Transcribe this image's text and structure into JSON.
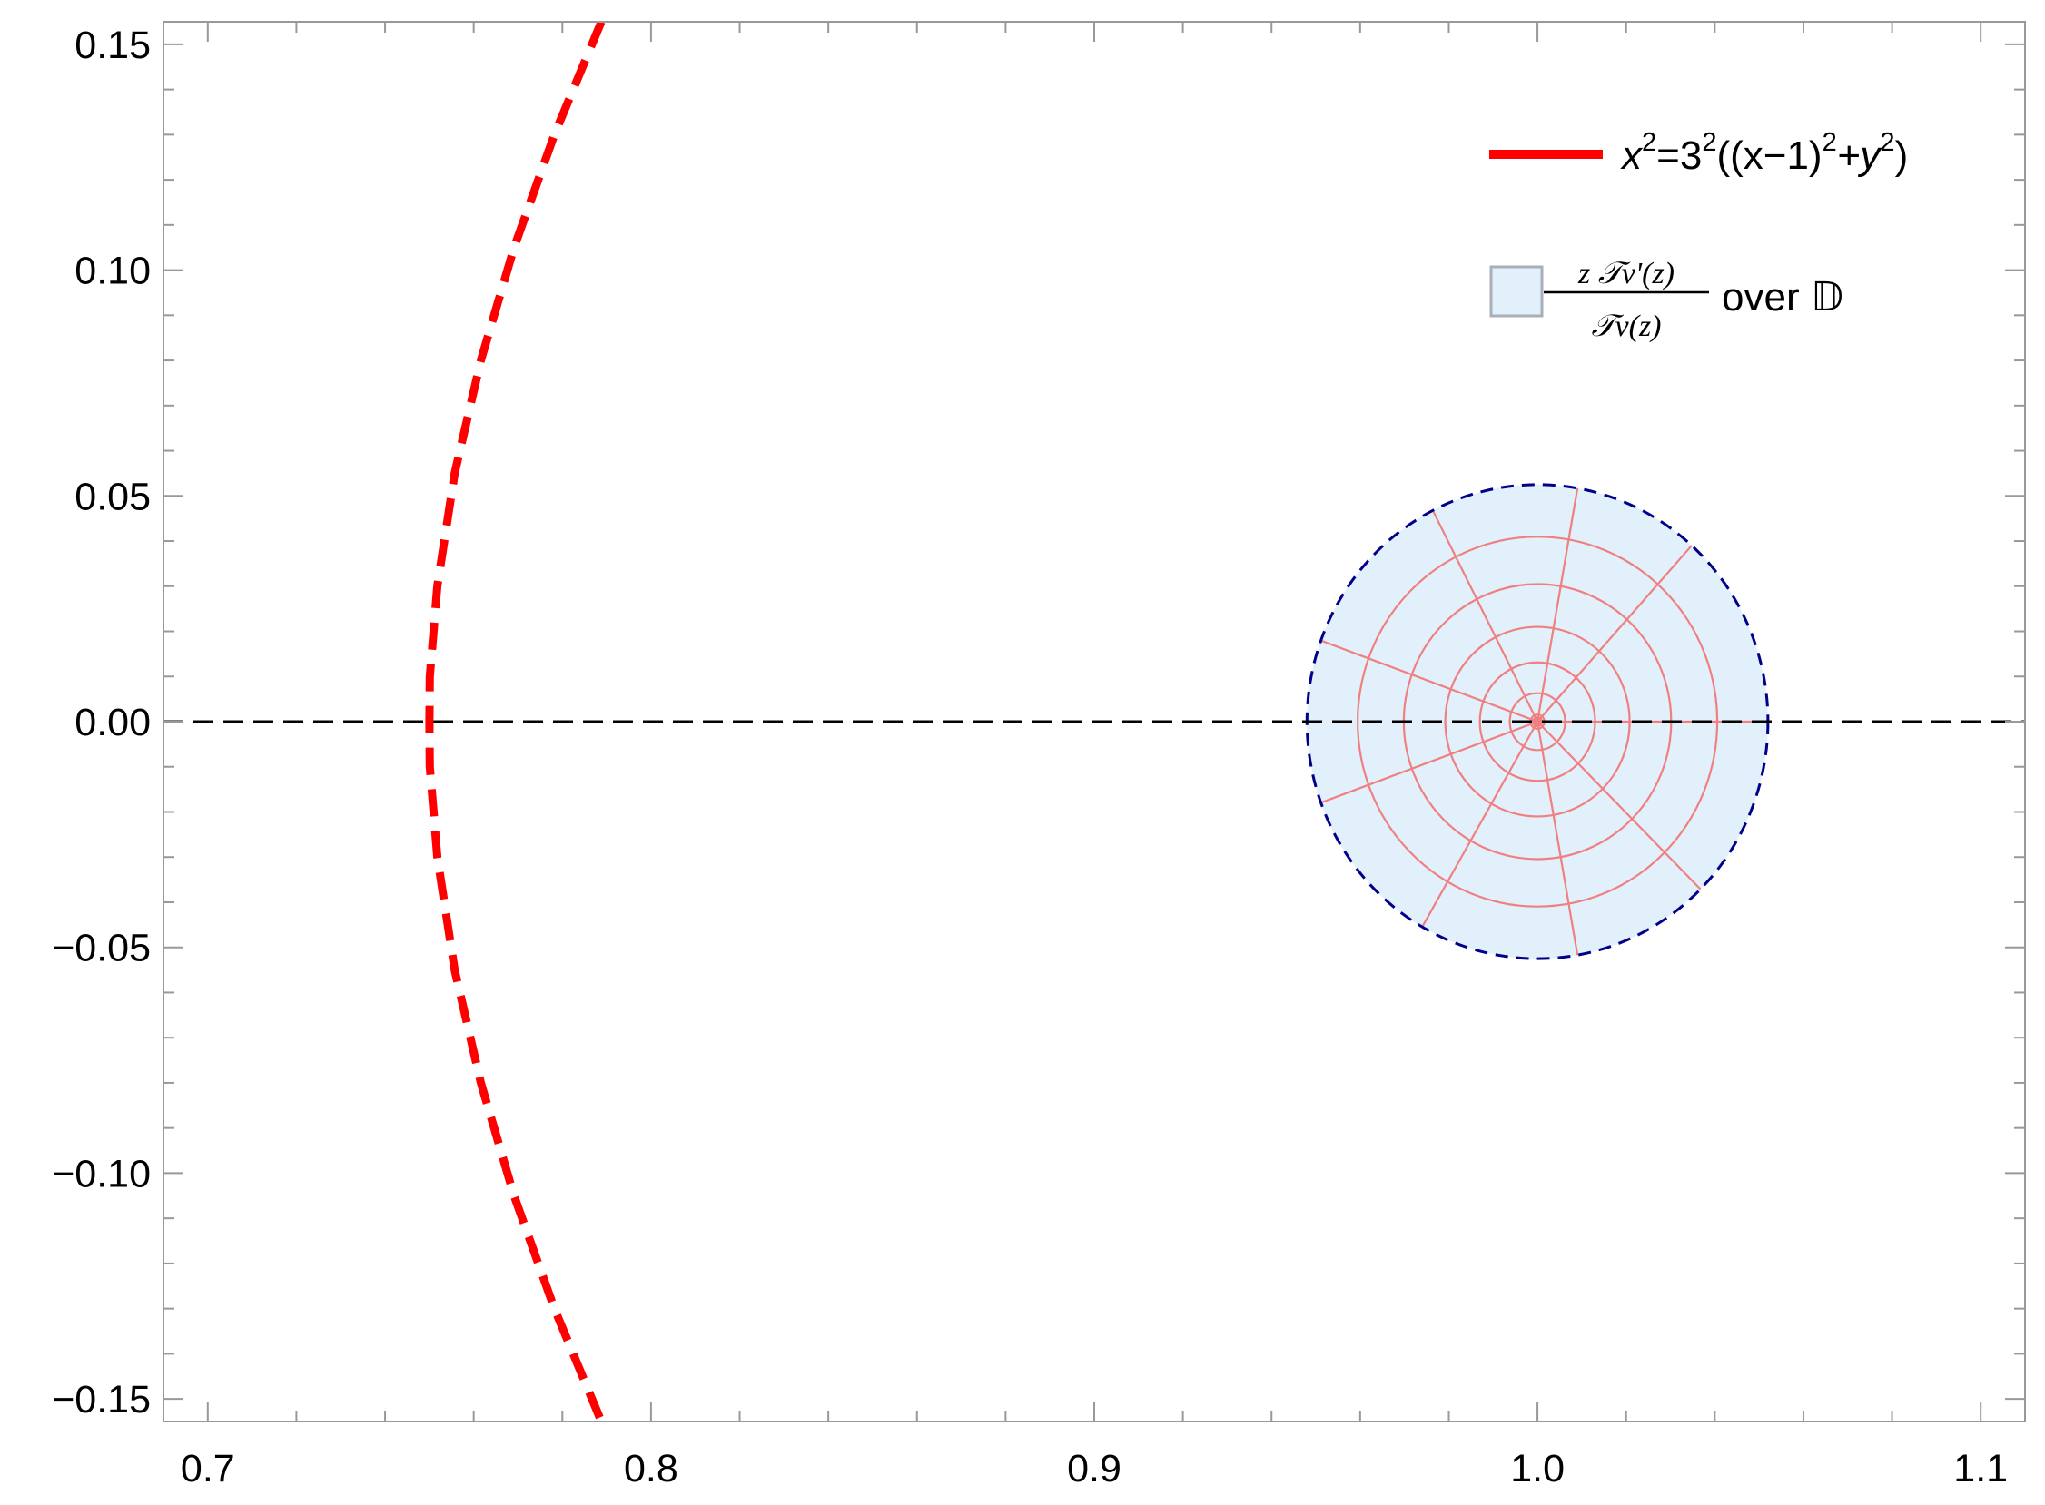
{
  "chart_data": {
    "type": "line",
    "xlim": [
      0.69,
      1.11
    ],
    "ylim": [
      -0.155,
      0.155
    ],
    "x_ticks": [
      {
        "value": 0.7,
        "label": "0.7"
      },
      {
        "value": 0.8,
        "label": "0.8"
      },
      {
        "value": 0.9,
        "label": "0.9"
      },
      {
        "value": 1.0,
        "label": "1.0"
      },
      {
        "value": 1.1,
        "label": "1.1"
      }
    ],
    "y_ticks": [
      {
        "value": 0.15,
        "label": "0.15"
      },
      {
        "value": 0.1,
        "label": "0.10"
      },
      {
        "value": 0.05,
        "label": "0.05"
      },
      {
        "value": 0.0,
        "label": "0.00"
      },
      {
        "value": -0.05,
        "label": "−0.05"
      },
      {
        "value": -0.1,
        "label": "−0.10"
      },
      {
        "value": -0.15,
        "label": "−0.15"
      }
    ],
    "x_minor_step": 0.02,
    "y_minor_step": 0.01,
    "grid": false,
    "legend_position": "top-right",
    "reference_line": {
      "y": 0.0,
      "style": "dashed",
      "color": "#000000"
    },
    "series": [
      {
        "id": "boundary-curve",
        "type": "curve",
        "style": "dashed",
        "color": "#ff0000",
        "points": [
          [
            0.7888,
            0.155
          ],
          [
            0.7782,
            0.13
          ],
          [
            0.7691,
            0.105
          ],
          [
            0.7616,
            0.08
          ],
          [
            0.7557,
            0.055
          ],
          [
            0.7518,
            0.03
          ],
          [
            0.7501,
            0.01
          ],
          [
            0.75,
            0.0
          ],
          [
            0.7501,
            -0.01
          ],
          [
            0.7518,
            -0.03
          ],
          [
            0.7557,
            -0.055
          ],
          [
            0.7616,
            -0.08
          ],
          [
            0.7691,
            -0.105
          ],
          [
            0.7782,
            -0.13
          ],
          [
            0.7888,
            -0.155
          ]
        ]
      },
      {
        "id": "image-region",
        "type": "disk",
        "center": [
          1.0,
          0.0
        ],
        "radius_x": 0.052,
        "radius_y": 0.0525,
        "fill": "#e1f0fb",
        "boundary_color": "#00008b",
        "mesh_color": "#f08080",
        "mesh_ring_fractions": [
          0.03,
          0.12,
          0.25,
          0.4,
          0.58,
          0.78
        ],
        "mesh_spoke_angles_deg": [
          80,
          48,
          0,
          -45,
          -80,
          -120,
          -160,
          160,
          117
        ]
      }
    ],
    "legend": {
      "line_entry": {
        "color": "#ff0000",
        "pre": "x",
        "sup1": "2",
        "mid": "=3",
        "sup2": "2",
        "mid2": "((x−1)",
        "sup3": "2",
        "mid3": "+y",
        "sup4": "2",
        "post": ")"
      },
      "area_entry": {
        "fill": "#e1f0fb",
        "border": "#a9aeb8",
        "numerator": "z 𝒯ν'(z)",
        "denominator": "𝒯ν(z)",
        "suffix": "over 𝔻"
      }
    }
  }
}
